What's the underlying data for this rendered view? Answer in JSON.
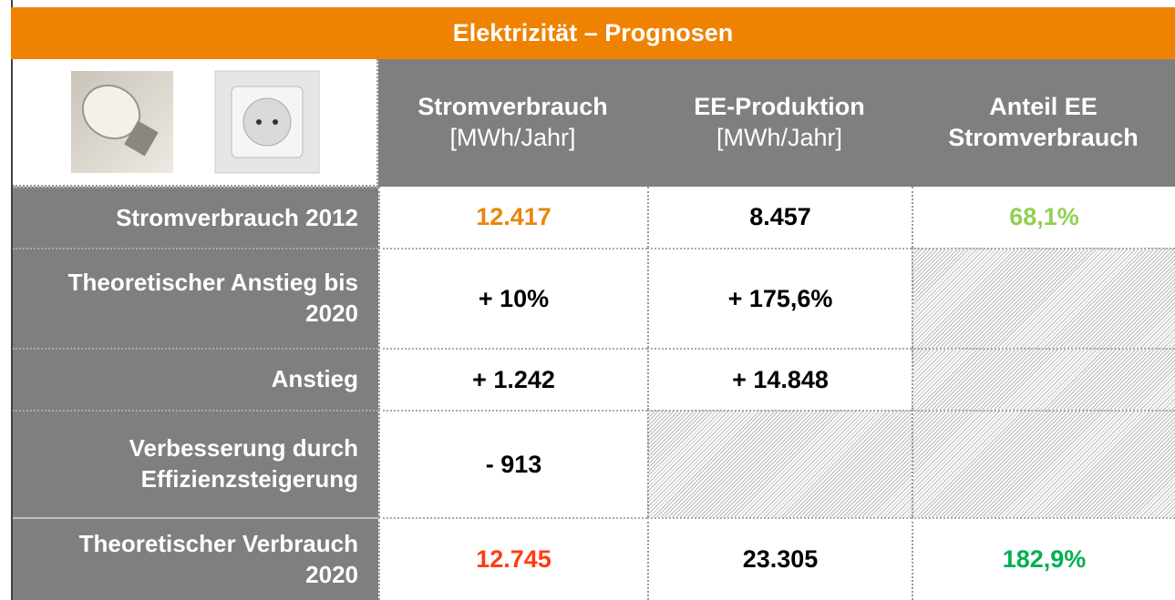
{
  "title": "Elektrizität – Prognosen",
  "header": {
    "columns": [
      {
        "name": "Stromverbrauch",
        "unit": "[MWh/Jahr]"
      },
      {
        "name": "EE-Produktion",
        "unit": "[MWh/Jahr]"
      },
      {
        "name": "Anteil EE Stromverbrauch",
        "unit": null
      }
    ]
  },
  "table": {
    "rows": [
      {
        "label": "Stromverbrauch 2012",
        "cells": [
          "12.417",
          "8.457",
          "68,1%"
        ]
      },
      {
        "label": "Theoretischer Anstieg bis 2020",
        "cells": [
          "+ 10%",
          "+ 175,6%",
          null
        ]
      },
      {
        "label": "Anstieg",
        "cells": [
          "+ 1.242",
          "+ 14.848",
          null
        ]
      },
      {
        "label": "Verbesserung durch Effizienzsteigerung",
        "cells": [
          "- 913",
          null,
          null
        ]
      },
      {
        "label": "Theoretischer Verbrauch 2020",
        "cells": [
          "12.745",
          "23.305",
          "182,9%"
        ]
      }
    ]
  }
}
